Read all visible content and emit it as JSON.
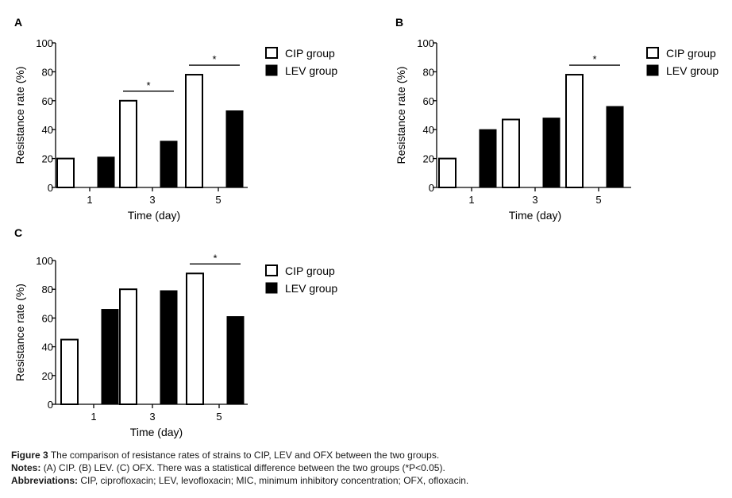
{
  "chart_data": [
    {
      "panel": "A",
      "type": "bar",
      "categories": [
        "1",
        "3",
        "5"
      ],
      "series": [
        {
          "name": "CIP group",
          "values": [
            20,
            60,
            78
          ]
        },
        {
          "name": "LEV group",
          "values": [
            21,
            32,
            53
          ]
        }
      ],
      "significance": [
        false,
        true,
        true
      ],
      "xlabel": "Time (day)",
      "ylabel": "Resistance rate (%)",
      "ylim": [
        0,
        100
      ],
      "yticks": [
        0,
        20,
        40,
        60,
        80,
        100
      ],
      "legend": "right"
    },
    {
      "panel": "B",
      "type": "bar",
      "categories": [
        "1",
        "3",
        "5"
      ],
      "series": [
        {
          "name": "CIP group",
          "values": [
            20,
            47,
            78
          ]
        },
        {
          "name": "LEV group",
          "values": [
            40,
            48,
            56
          ]
        }
      ],
      "significance": [
        false,
        false,
        true
      ],
      "xlabel": "Time (day)",
      "ylabel": "Resistance rate (%)",
      "ylim": [
        0,
        100
      ],
      "yticks": [
        0,
        20,
        40,
        60,
        80,
        100
      ],
      "legend": "right"
    },
    {
      "panel": "C",
      "type": "bar",
      "categories": [
        "1",
        "3",
        "5"
      ],
      "series": [
        {
          "name": "CIP group",
          "values": [
            45,
            80,
            91
          ]
        },
        {
          "name": "LEV group",
          "values": [
            66,
            79,
            61
          ]
        }
      ],
      "significance": [
        false,
        false,
        true
      ],
      "xlabel": "Time (day)",
      "ylabel": "Resistance rate (%)",
      "ylim": [
        0,
        100
      ],
      "yticks": [
        0,
        20,
        40,
        60,
        80,
        100
      ],
      "legend": "right"
    }
  ],
  "significance_marker": "*",
  "caption": {
    "figure_label": "Figure 3",
    "figure_text": "The comparison of resistance rates of strains to CIP, LEV and OFX between the two groups.",
    "notes_label": "Notes:",
    "notes_text": "(A) CIP. (B) LEV. (C) OFX. There was a statistical difference between the two groups (*P<0.05).",
    "abbr_label": "Abbreviations:",
    "abbr_text": "CIP, ciprofloxacin; LEV, levofloxacin; MIC, minimum inhibitory concentration; OFX, ofloxacin."
  }
}
